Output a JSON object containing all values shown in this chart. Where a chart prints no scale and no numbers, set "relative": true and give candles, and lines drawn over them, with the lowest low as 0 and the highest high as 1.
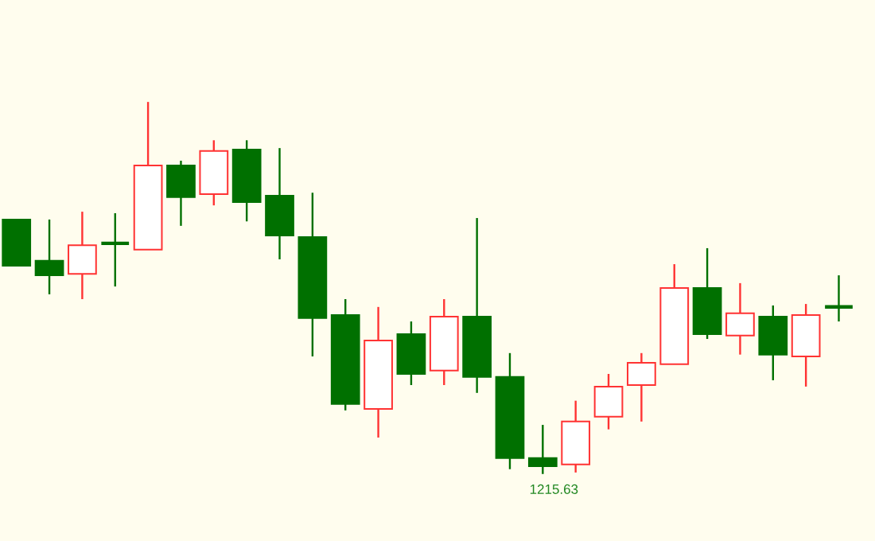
{
  "chart_data": {
    "type": "candlestick",
    "relative": true,
    "categories": [
      null,
      null,
      null,
      null,
      null,
      null,
      null,
      null,
      null,
      null,
      null,
      null,
      null,
      null,
      null,
      null,
      null,
      null,
      null,
      null,
      null,
      null,
      null,
      null,
      null,
      null
    ],
    "ohlc": [
      [
        0.684,
        0.684,
        0.56,
        0.56
      ],
      [
        0.573,
        0.684,
        0.483,
        0.534
      ],
      [
        0.538,
        0.705,
        0.47,
        0.615
      ],
      [
        0.62,
        0.701,
        0.504,
        0.615
      ],
      [
        0.603,
        1,
        0.603,
        0.829
      ],
      [
        0.829,
        0.842,
        0.667,
        0.744
      ],
      [
        0.752,
        0.897,
        0.722,
        0.868
      ],
      [
        0.872,
        0.897,
        0.679,
        0.731
      ],
      [
        0.748,
        0.876,
        0.577,
        0.641
      ],
      [
        0.637,
        0.756,
        0.316,
        0.419
      ],
      [
        0.427,
        0.47,
        0.171,
        0.188
      ],
      [
        0.175,
        0.449,
        0.098,
        0.359
      ],
      [
        0.376,
        0.41,
        0.239,
        0.269
      ],
      [
        0.278,
        0.47,
        0.239,
        0.423
      ],
      [
        0.423,
        0.688,
        0.218,
        0.261
      ],
      [
        0.261,
        0.325,
        0.013,
        0.043
      ],
      [
        0.043,
        0.132,
        0,
        0.021
      ],
      [
        0.026,
        0.197,
        0.004,
        0.141
      ],
      [
        0.154,
        0.269,
        0.12,
        0.235
      ],
      [
        0.239,
        0.325,
        0.141,
        0.299
      ],
      [
        0.295,
        0.564,
        0.295,
        0.5
      ],
      [
        0.5,
        0.607,
        0.363,
        0.376
      ],
      [
        0.372,
        0.513,
        0.321,
        0.432
      ],
      [
        0.423,
        0.453,
        0.252,
        0.321
      ],
      [
        0.316,
        0.457,
        0.235,
        0.427
      ],
      [
        0.449,
        0.534,
        0.41,
        0.444
      ]
    ],
    "colors": [
      "#007000",
      "#007000",
      "#ff3333",
      "#007000",
      "#ff3333",
      "#007000",
      "#ff3333",
      "#007000",
      "#007000",
      "#007000",
      "#007000",
      "#ff3333",
      "#007000",
      "#ff3333",
      "#007000",
      "#007000",
      "#007000",
      "#ff3333",
      "#ff3333",
      "#ff3333",
      "#ff3333",
      "#007000",
      "#ff3333",
      "#007000",
      "#ff3333",
      "#007000"
    ],
    "annotations": [
      {
        "text": "1215.63",
        "y": 0
      }
    ]
  }
}
